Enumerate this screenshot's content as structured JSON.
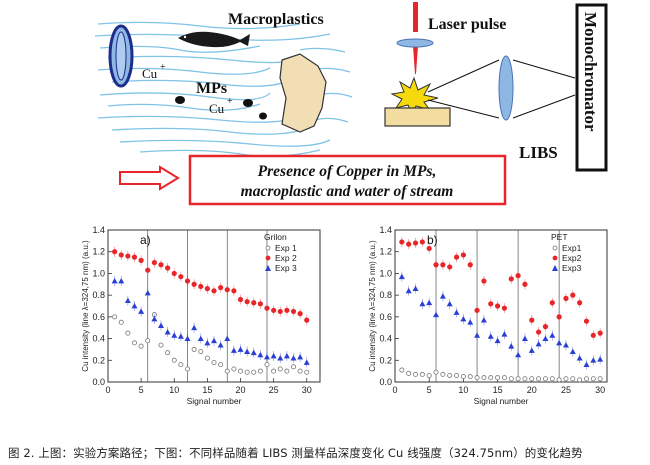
{
  "diagram": {
    "macroplastics_label": "Macroplastics",
    "laser_label": "Laser pulse",
    "monochromator_label": "Monochromator",
    "mps_label": "MPs",
    "libs_label": "LIBS",
    "cu_label_1": "Cu",
    "cu_label_2": "Cu",
    "cu_charge": "+",
    "presence_line1": "Presence of Copper in MPs,",
    "presence_line2": "macroplastic and water of stream",
    "colors": {
      "water": "#7fc3e6",
      "red": "#e8262a",
      "lens": "#8fb7e3",
      "target": "#f3dca0",
      "macroplastic": "#f2deb4",
      "flash": "#f5d90a"
    }
  },
  "caption": "图 2. 上图：实验方案路径；下图：不同样品随着 LIBS 测量样品深度变化 Cu 线强度（324.75nm）的变化趋势",
  "chart_data": [
    {
      "type": "scatter",
      "panel": "a)",
      "legend_title": "Grilon",
      "xlabel": "Signal number",
      "ylabel": "Cu intensity (line λ=324,75 nm) (a.u.)",
      "xlim": [
        0,
        32
      ],
      "ylim": [
        0,
        1.4
      ],
      "xticks": [
        0,
        5,
        10,
        15,
        20,
        25,
        30
      ],
      "yticks": [
        0.0,
        0.2,
        0.4,
        0.6,
        0.8,
        1.0,
        1.2,
        1.4
      ],
      "separators": [
        6,
        12,
        18,
        24
      ],
      "series": [
        {
          "name": "Exp 1",
          "marker": "open-circle",
          "color": "#777777",
          "x": [
            1,
            2,
            3,
            4,
            5,
            6,
            7,
            8,
            9,
            10,
            11,
            12,
            13,
            14,
            15,
            16,
            17,
            18,
            19,
            20,
            21,
            22,
            23,
            24,
            25,
            26,
            27,
            28,
            29,
            30
          ],
          "y": [
            0.6,
            0.55,
            0.45,
            0.36,
            0.33,
            0.38,
            0.62,
            0.34,
            0.27,
            0.2,
            0.16,
            0.12,
            0.3,
            0.28,
            0.22,
            0.18,
            0.16,
            0.1,
            0.12,
            0.1,
            0.09,
            0.09,
            0.1,
            0.16,
            0.1,
            0.12,
            0.1,
            0.14,
            0.1,
            0.09
          ]
        },
        {
          "name": "Exp 2",
          "marker": "filled-circle",
          "color": "#e8262a",
          "x": [
            1,
            2,
            3,
            4,
            5,
            6,
            7,
            8,
            9,
            10,
            11,
            12,
            13,
            14,
            15,
            16,
            17,
            18,
            19,
            20,
            21,
            22,
            23,
            24,
            25,
            26,
            27,
            28,
            29,
            30
          ],
          "y": [
            1.2,
            1.17,
            1.16,
            1.15,
            1.12,
            1.03,
            1.1,
            1.08,
            1.05,
            1.0,
            0.97,
            0.93,
            0.9,
            0.88,
            0.86,
            0.84,
            0.87,
            0.85,
            0.84,
            0.76,
            0.74,
            0.73,
            0.72,
            0.68,
            0.66,
            0.65,
            0.66,
            0.65,
            0.63,
            0.57
          ]
        },
        {
          "name": "Exp 3",
          "marker": "filled-triangle",
          "color": "#2a3fd4",
          "x": [
            1,
            2,
            3,
            4,
            5,
            6,
            7,
            8,
            9,
            10,
            11,
            12,
            13,
            14,
            15,
            16,
            17,
            18,
            19,
            20,
            21,
            22,
            23,
            24,
            25,
            26,
            27,
            28,
            29,
            30
          ],
          "y": [
            0.93,
            0.93,
            0.75,
            0.7,
            0.65,
            0.82,
            0.58,
            0.52,
            0.46,
            0.43,
            0.42,
            0.4,
            0.5,
            0.4,
            0.36,
            0.38,
            0.34,
            0.4,
            0.29,
            0.3,
            0.28,
            0.27,
            0.25,
            0.23,
            0.24,
            0.22,
            0.24,
            0.22,
            0.23,
            0.18
          ]
        }
      ]
    },
    {
      "type": "scatter",
      "panel": "b)",
      "legend_title": "PET",
      "xlabel": "Signal number",
      "ylabel": "Cu intensity (line λ=324,75 nm) (a.u.)",
      "xlim": [
        0,
        31
      ],
      "ylim": [
        0,
        1.4
      ],
      "xticks": [
        0,
        5,
        10,
        15,
        20,
        25,
        30
      ],
      "yticks": [
        0.0,
        0.2,
        0.4,
        0.6,
        0.8,
        1.0,
        1.2,
        1.4
      ],
      "separators": [
        6,
        12,
        18,
        24
      ],
      "series": [
        {
          "name": "Exp1",
          "marker": "open-circle",
          "color": "#777777",
          "x": [
            1,
            2,
            3,
            4,
            5,
            6,
            7,
            8,
            9,
            10,
            11,
            12,
            13,
            14,
            15,
            16,
            17,
            18,
            19,
            20,
            21,
            22,
            23,
            24,
            25,
            26,
            27,
            28,
            29,
            30
          ],
          "y": [
            0.11,
            0.08,
            0.07,
            0.07,
            0.06,
            0.09,
            0.07,
            0.06,
            0.06,
            0.05,
            0.05,
            0.04,
            0.04,
            0.04,
            0.04,
            0.04,
            0.03,
            0.03,
            0.03,
            0.03,
            0.03,
            0.03,
            0.03,
            0.02,
            0.03,
            0.03,
            0.02,
            0.03,
            0.03,
            0.03
          ]
        },
        {
          "name": "Exp2",
          "marker": "filled-circle",
          "color": "#e8262a",
          "x": [
            1,
            2,
            3,
            4,
            5,
            6,
            7,
            8,
            9,
            10,
            11,
            12,
            13,
            14,
            15,
            16,
            17,
            18,
            19,
            20,
            21,
            22,
            23,
            24,
            25,
            26,
            27,
            28,
            29,
            30
          ],
          "y": [
            1.29,
            1.27,
            1.28,
            1.29,
            1.23,
            1.08,
            1.08,
            1.06,
            1.15,
            1.17,
            1.08,
            0.66,
            0.93,
            0.72,
            0.7,
            0.68,
            0.95,
            0.98,
            0.9,
            0.57,
            0.46,
            0.51,
            0.73,
            0.6,
            0.77,
            0.8,
            0.73,
            0.56,
            0.43,
            0.45
          ]
        },
        {
          "name": "Exp3",
          "marker": "filled-triangle",
          "color": "#2a3fd4",
          "x": [
            1,
            2,
            3,
            4,
            5,
            6,
            7,
            8,
            9,
            10,
            11,
            12,
            13,
            14,
            15,
            16,
            17,
            18,
            19,
            20,
            21,
            22,
            23,
            24,
            25,
            26,
            27,
            28,
            29,
            30
          ],
          "y": [
            0.97,
            0.84,
            0.86,
            0.72,
            0.73,
            0.62,
            0.79,
            0.72,
            0.64,
            0.58,
            0.55,
            0.43,
            0.57,
            0.42,
            0.38,
            0.44,
            0.33,
            0.25,
            0.4,
            0.29,
            0.35,
            0.4,
            0.43,
            0.36,
            0.34,
            0.28,
            0.22,
            0.16,
            0.2,
            0.21
          ]
        }
      ]
    }
  ]
}
